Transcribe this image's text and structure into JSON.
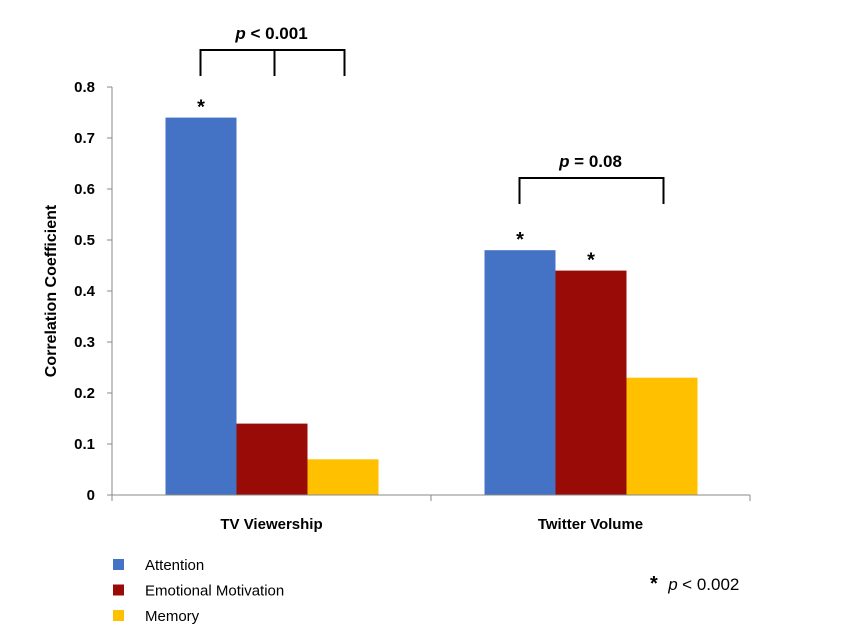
{
  "chart_data": {
    "type": "bar",
    "title": "",
    "xlabel": "",
    "ylabel": "Correlation Coefficient",
    "ylim": [
      0,
      0.8
    ],
    "yticks": [
      "0",
      "0.1",
      "0.2",
      "0.3",
      "0.4",
      "0.5",
      "0.6",
      "0.7",
      "0.8"
    ],
    "grid": false,
    "categories": [
      "TV Viewership",
      "Twitter Volume"
    ],
    "series": [
      {
        "name": "Attention",
        "color": "#4472C4",
        "values": [
          0.74,
          0.48
        ],
        "significant": [
          true,
          true
        ]
      },
      {
        "name": "Emotional Motivation",
        "color": "#990B06",
        "values": [
          0.14,
          0.44
        ],
        "significant": [
          false,
          true
        ]
      },
      {
        "name": "Memory",
        "color": "#FFC000",
        "values": [
          0.07,
          0.23
        ],
        "significant": [
          false,
          false
        ]
      }
    ],
    "significance_marker": "*",
    "comparisons": [
      {
        "category": "TV Viewership",
        "label_p": "p",
        "label_rest": " < 0.001"
      },
      {
        "category": "Twitter Volume",
        "label_p": "p",
        "label_rest": " = 0.08"
      }
    ],
    "legend_position": "bottom-left",
    "footnote": {
      "marker": "*",
      "p": "p",
      "rest": " < 0.002"
    }
  }
}
